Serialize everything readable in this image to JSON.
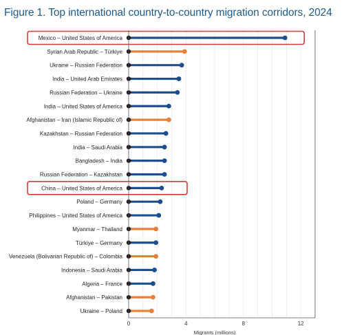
{
  "figure": {
    "title": "Figure 1. Top international country-to-country migration corridors, 2024"
  },
  "chart_data": {
    "type": "lollipop",
    "title": "Figure 1. Top international country-to-country migration corridors, 2024",
    "xlabel": "Migrants (millions)",
    "ylabel": "",
    "xlim": [
      0,
      13
    ],
    "xticks": [
      0,
      4,
      8,
      12
    ],
    "grid": "vertical",
    "colors": {
      "blue": "#1d4e8f",
      "orange": "#e8803a",
      "highlight": "#d23b36",
      "dot": "#1a1a1a"
    },
    "categories": [
      "Mexico – United States of America",
      "Syrian Arab Republic – Türkiye",
      "Ukraine – Russian Federation",
      "India – United Arab Emirates",
      "Russian Federation – Ukraine",
      "India – United States of America",
      "Afghanistan – Iran (Islamic Republic of)",
      "Kazakhstan – Russian Federation",
      "India – Saudi Arabia",
      "Bangladesh – India",
      "Russian Federation – Kazakhstan",
      "China – United States of America",
      "Poland – Germany",
      "Philippines – United States of America",
      "Myanmar – Thailand",
      "Türkiye – Germany",
      "Venezuela (Bolivarian Republic of) – Colombia",
      "Indonesia – Saudi Arabia",
      "Algeria – France",
      "Afghanistan – Pakistan",
      "Ukraine – Poland"
    ],
    "values": [
      10.9,
      3.9,
      3.7,
      3.5,
      3.4,
      2.8,
      2.8,
      2.6,
      2.5,
      2.5,
      2.5,
      2.3,
      2.2,
      2.1,
      1.9,
      1.9,
      1.9,
      1.8,
      1.7,
      1.7,
      1.6
    ],
    "bar_colors": [
      "blue",
      "orange",
      "blue",
      "blue",
      "blue",
      "blue",
      "orange",
      "blue",
      "blue",
      "blue",
      "blue",
      "blue",
      "blue",
      "blue",
      "orange",
      "blue",
      "orange",
      "blue",
      "blue",
      "orange",
      "orange"
    ],
    "highlighted": [
      "Mexico – United States of America",
      "China – United States of America"
    ]
  }
}
